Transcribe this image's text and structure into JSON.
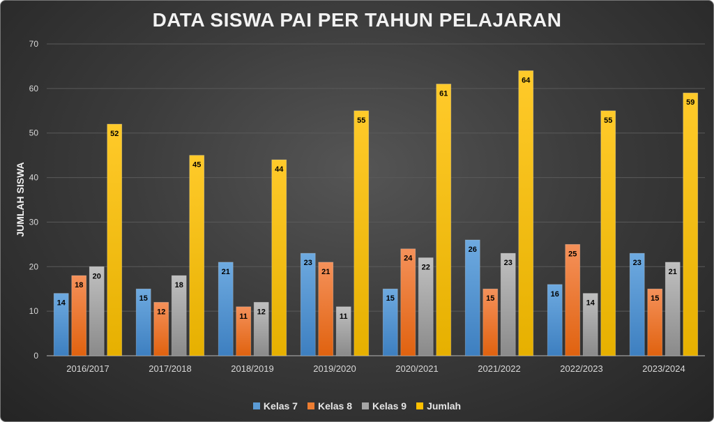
{
  "chart_data": {
    "type": "bar",
    "title": "DATA SISWA PAI PER TAHUN PELAJARAN",
    "xlabel": "",
    "ylabel": "JUMLAH SISWA",
    "ylim": [
      0,
      70
    ],
    "yticks": [
      0,
      10,
      20,
      30,
      40,
      50,
      60,
      70
    ],
    "grid": true,
    "legend_position": "bottom",
    "categories": [
      "2016/2017",
      "2017/2018",
      "2018/2019",
      "2019/2020",
      "2020/2021",
      "2021/2022",
      "2022/2023",
      "2023/2024"
    ],
    "series": [
      {
        "name": "Kelas 7",
        "color": "#5b9bd5",
        "values": [
          14,
          15,
          21,
          23,
          15,
          26,
          16,
          23
        ]
      },
      {
        "name": "Kelas 8",
        "color": "#ed7d31",
        "values": [
          18,
          12,
          11,
          21,
          24,
          15,
          25,
          15
        ]
      },
      {
        "name": "Kelas 9",
        "color": "#a5a5a5",
        "values": [
          20,
          18,
          12,
          11,
          22,
          23,
          14,
          21
        ]
      },
      {
        "name": "Jumlah",
        "color": "#ffc000",
        "values": [
          52,
          45,
          44,
          55,
          61,
          64,
          55,
          59
        ]
      }
    ]
  }
}
